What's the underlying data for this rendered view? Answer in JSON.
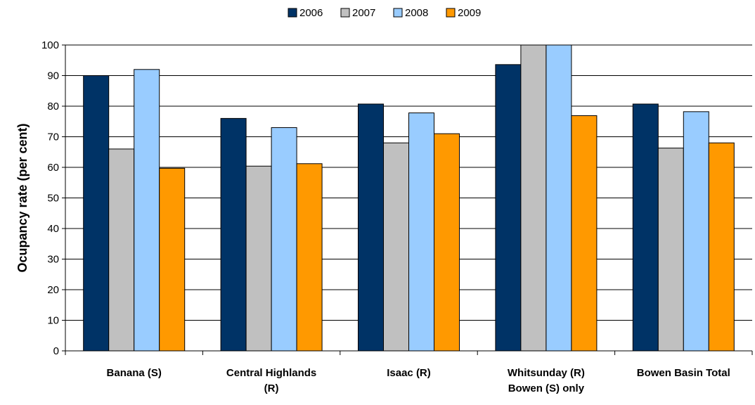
{
  "chart_data": {
    "type": "bar",
    "title": "",
    "xlabel": "",
    "ylabel": "Ocupancy rate (per cent)",
    "ylim": [
      0,
      100
    ],
    "yticks": [
      0,
      10,
      20,
      30,
      40,
      50,
      60,
      70,
      80,
      90,
      100
    ],
    "grid": true,
    "legend_position": "top",
    "categories": [
      [
        "Banana  (S)"
      ],
      [
        "Central Highlands",
        "(R)"
      ],
      [
        "Isaac (R)"
      ],
      [
        "Whitsunday (R)",
        "Bowen (S) only"
      ],
      [
        "Bowen Basin Total"
      ]
    ],
    "series": [
      {
        "name": "2006",
        "color": "#003366",
        "values": [
          90.0,
          76.0,
          80.7,
          93.6,
          80.7
        ]
      },
      {
        "name": "2007",
        "color": "#C0C0C0",
        "values": [
          66.0,
          60.4,
          68.0,
          100.0,
          66.3
        ]
      },
      {
        "name": "2008",
        "color": "#99CCFF",
        "values": [
          92.0,
          73.0,
          77.8,
          100.0,
          78.2
        ]
      },
      {
        "name": "2009",
        "color": "#FF9900",
        "values": [
          59.7,
          61.2,
          71.0,
          76.9,
          68.0
        ]
      }
    ]
  }
}
